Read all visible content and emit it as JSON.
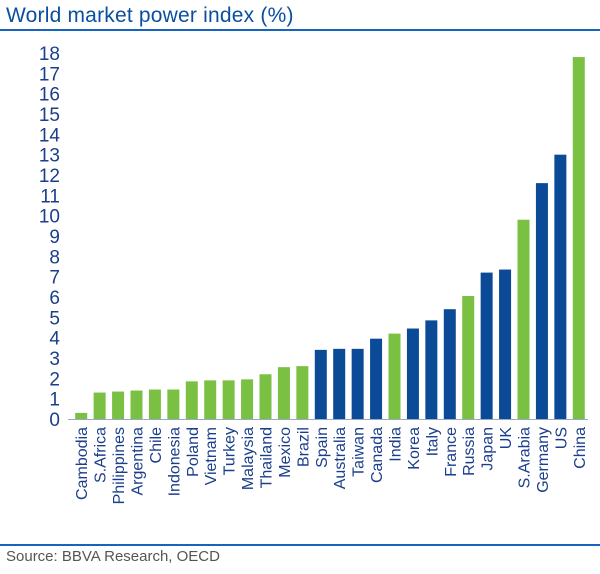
{
  "title": "World market power index (%)",
  "source": "Source: BBVA Research, OECD",
  "colors": {
    "green": "#7ac143",
    "blue": "#0b4a96",
    "axis_text": "#1b3e8c",
    "title": "#0a4f9e",
    "rule": "#1565c0"
  },
  "chart_data": {
    "type": "bar",
    "title": "World market power index (%)",
    "xlabel": "",
    "ylabel": "",
    "ylim": [
      0,
      18
    ],
    "yticks": [
      "0",
      "1",
      "2",
      "3",
      "4",
      "5",
      "6",
      "7",
      "8",
      "9",
      "10",
      "11",
      "12",
      "13",
      "14",
      "15",
      "16",
      "17",
      "18"
    ],
    "grid": false,
    "categories": [
      "Cambodia",
      "S.Africa",
      "Philippines",
      "Argentina",
      "Chile",
      "Indonesia",
      "Poland",
      "Vietnam",
      "Turkey",
      "Malaysia",
      "Thailand",
      "Mexico",
      "Brazil",
      "Spain",
      "Australia",
      "Taiwan",
      "Canada",
      "India",
      "Korea",
      "Italy",
      "France",
      "Russia",
      "Japan",
      "UK",
      "S.Arabia",
      "Germany",
      "US",
      "China"
    ],
    "values": [
      0.3,
      1.3,
      1.35,
      1.4,
      1.45,
      1.45,
      1.85,
      1.9,
      1.9,
      1.95,
      2.2,
      2.55,
      2.6,
      3.4,
      3.45,
      3.45,
      3.95,
      4.2,
      4.45,
      4.85,
      5.4,
      6.05,
      7.2,
      7.35,
      9.8,
      11.6,
      13.0,
      17.8
    ],
    "bar_colors": [
      "green",
      "green",
      "green",
      "green",
      "green",
      "green",
      "green",
      "green",
      "green",
      "green",
      "green",
      "green",
      "green",
      "blue",
      "blue",
      "blue",
      "blue",
      "green",
      "blue",
      "blue",
      "blue",
      "green",
      "blue",
      "blue",
      "green",
      "blue",
      "blue",
      "green"
    ]
  }
}
